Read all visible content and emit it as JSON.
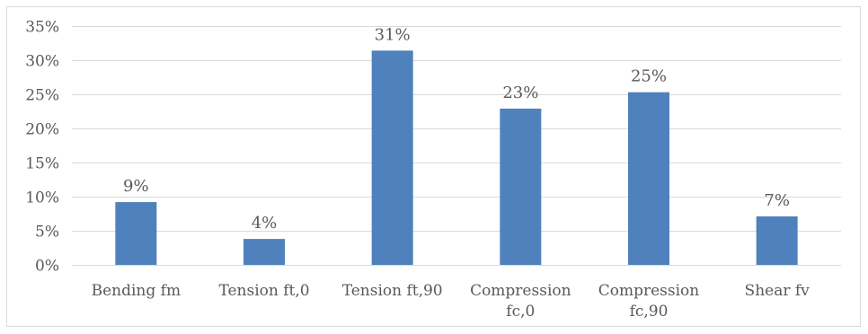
{
  "chart_data": {
    "type": "bar",
    "categories": [
      [
        "Bending fm"
      ],
      [
        "Tension ft,0"
      ],
      [
        "Tension ft,90"
      ],
      [
        "Compression",
        "fc,0"
      ],
      [
        "Compression",
        "fc,90"
      ],
      [
        "Shear fv"
      ]
    ],
    "values": [
      9.2,
      3.8,
      31.4,
      22.9,
      25.3,
      7.1
    ],
    "data_labels": [
      "9%",
      "4%",
      "31%",
      "23%",
      "25%",
      "7%"
    ],
    "y_ticks": [
      0,
      5,
      10,
      15,
      20,
      25,
      30,
      35
    ],
    "y_tick_labels": [
      "0%",
      "5%",
      "10%",
      "15%",
      "20%",
      "25%",
      "30%",
      "35%"
    ],
    "ylim": [
      0,
      35
    ],
    "grid": true,
    "bar_color": "#4f81bd",
    "grid_color": "#d9d9d9",
    "text_color": "#595959"
  }
}
